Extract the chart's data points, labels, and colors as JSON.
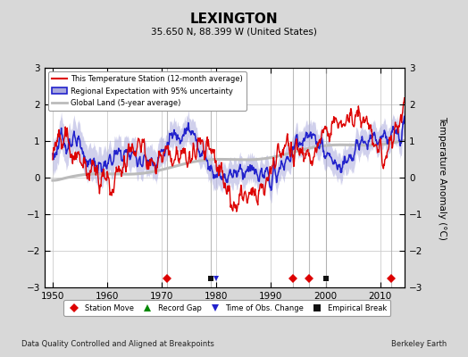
{
  "title": "LEXINGTON",
  "subtitle": "35.650 N, 88.399 W (United States)",
  "ylabel": "Temperature Anomaly (°C)",
  "ylim": [
    -3,
    3
  ],
  "xlim": [
    1948.5,
    2014.5
  ],
  "xticks": [
    1950,
    1960,
    1970,
    1980,
    1990,
    2000,
    2010
  ],
  "yticks": [
    -3,
    -2,
    -1,
    0,
    1,
    2,
    3
  ],
  "background_color": "#d8d8d8",
  "plot_bg_color": "#ffffff",
  "footer_left": "Data Quality Controlled and Aligned at Breakpoints",
  "footer_right": "Berkeley Earth",
  "station_moves": [
    1971,
    1994,
    1997,
    2012
  ],
  "empirical_breaks": [
    1979,
    2000
  ],
  "time_of_obs_change": [
    1980
  ],
  "record_gaps": [],
  "vertical_lines": [
    1971,
    1979,
    1994,
    1997,
    2000,
    2012
  ],
  "vline_color": "#aaaaaa",
  "grid_color": "#cccccc",
  "red_color": "#dd0000",
  "blue_color": "#2222cc",
  "band_color": "#aaaadd",
  "gray_color": "#bbbbbb"
}
